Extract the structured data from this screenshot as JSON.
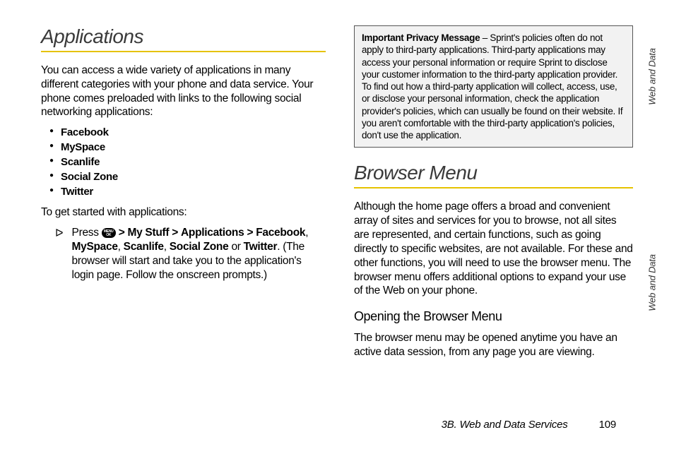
{
  "left": {
    "heading": "Applications",
    "intro": "You can access a wide variety of applications in many different categories with your phone and data service. Your phone comes preloaded with links to the following social networking applications:",
    "apps": [
      "Facebook",
      "MySpace",
      "Scanlife",
      "Social Zone",
      "Twitter"
    ],
    "started_label": "To get started with applications:",
    "step_prefix": "Press",
    "ok_top": "MENU",
    "ok_bottom": "OK",
    "gt": ">",
    "path": [
      "My Stuff",
      "Applications"
    ],
    "options": [
      "Facebook",
      "MySpace",
      "Scanlife",
      "Social Zone",
      "Twitter"
    ],
    "comma": ", ",
    "or": " or ",
    "period": ". ",
    "step_suffix": "(The browser will start and take you to the application's login page. Follow the onscreen prompts.)"
  },
  "right": {
    "callout_bold": "Important Privacy Message",
    "callout_text": " – Sprint's policies often do not apply to third-party applications. Third-party applications may access your personal information or require Sprint to disclose your customer information to the third-party application provider. To find out how a third-party application will collect, access, use, or disclose your personal information, check the application provider's policies, which can usually be found on their website. If you aren't comfortable with the third-party application's policies, don't use the application.",
    "heading": "Browser Menu",
    "para": "Although the home page offers a broad and convenient array of sites and services for you to browse, not all sites are represented, and certain functions, such as going directly to specific websites, are not available. For these and other functions, you will need to use the browser menu. The browser menu offers additional options to expand your use of the Web on your phone.",
    "sub": "Opening the Browser Menu",
    "sub_para": "The browser menu may be opened anytime you have an active data session, from any page you are viewing."
  },
  "side_label": "Web and Data",
  "footer_section": "3B. Web and Data Services",
  "footer_page": "109",
  "colors": {
    "rule": "#e6c200",
    "callout_bg": "#f2f2f2"
  }
}
